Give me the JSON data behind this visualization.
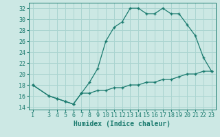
{
  "upper_x": [
    1,
    3,
    4,
    5,
    6,
    7,
    8,
    9,
    10,
    11,
    12,
    13,
    14,
    15,
    16,
    17,
    18,
    19,
    20,
    21,
    22,
    23
  ],
  "upper_y": [
    18,
    16,
    15.5,
    15,
    14.5,
    16.5,
    18.5,
    21,
    26,
    28.5,
    29.5,
    32,
    32,
    31,
    31,
    32,
    31,
    31,
    29,
    27,
    23,
    20.5
  ],
  "lower_x": [
    1,
    3,
    4,
    5,
    6,
    7,
    8,
    9,
    10,
    11,
    12,
    13,
    14,
    15,
    16,
    17,
    18,
    19,
    20,
    21,
    22,
    23
  ],
  "lower_y": [
    18,
    16,
    15.5,
    15,
    14.5,
    16.5,
    16.5,
    17,
    17,
    17.5,
    17.5,
    18,
    18,
    18.5,
    18.5,
    19,
    19,
    19.5,
    20,
    20,
    20.5,
    20.5
  ],
  "color": "#1a7a6e",
  "bg_color": "#cce8e4",
  "grid_color": "#aad4d0",
  "xlabel": "Humidex (Indice chaleur)",
  "ylim": [
    13.5,
    33
  ],
  "xlim": [
    0.5,
    23.5
  ],
  "yticks": [
    14,
    16,
    18,
    20,
    22,
    24,
    26,
    28,
    30,
    32
  ],
  "xticks": [
    1,
    3,
    4,
    5,
    6,
    7,
    8,
    9,
    10,
    11,
    12,
    13,
    14,
    15,
    16,
    17,
    18,
    19,
    20,
    21,
    22,
    23
  ],
  "xlabel_fontsize": 7,
  "tick_fontsize": 6
}
